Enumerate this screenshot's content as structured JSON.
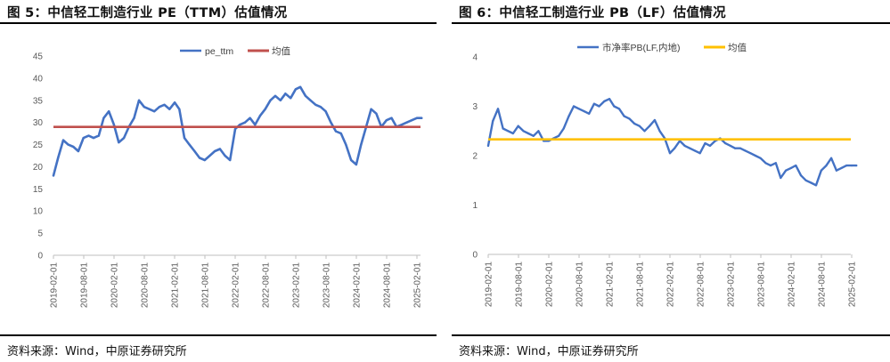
{
  "source_text": "资料来源：Wind，中原证券研究所",
  "chart_data": [
    {
      "type": "line",
      "title": "图 5：中信轻工制造行业 PE（TTM）估值情况",
      "ylim": [
        0,
        45
      ],
      "y_ticks": [
        "0",
        "5",
        "10",
        "15",
        "20",
        "25",
        "30",
        "35",
        "40",
        "45"
      ],
      "x_ticks": [
        "2019-02-01",
        "2019-08-01",
        "2020-02-01",
        "2020-08-01",
        "2021-02-01",
        "2021-08-01",
        "2022-02-01",
        "2022-08-01",
        "2023-02-01",
        "2023-08-01",
        "2024-02-01",
        "2024-08-01",
        "2025-02-01"
      ],
      "legend_placement": "top-center",
      "grid": false,
      "series": [
        {
          "name": "pe_ttm",
          "color": "#4472C4",
          "style": "line",
          "x": [
            "2019-02-01",
            "2019-03-01",
            "2019-04-01",
            "2019-05-01",
            "2019-06-01",
            "2019-07-01",
            "2019-08-01",
            "2019-09-01",
            "2019-10-01",
            "2019-11-01",
            "2019-12-01",
            "2020-01-01",
            "2020-02-01",
            "2020-03-01",
            "2020-04-01",
            "2020-05-01",
            "2020-06-01",
            "2020-07-01",
            "2020-08-01",
            "2020-09-01",
            "2020-10-01",
            "2020-11-01",
            "2020-12-01",
            "2021-01-01",
            "2021-02-01",
            "2021-03-01",
            "2021-04-01",
            "2021-05-01",
            "2021-06-01",
            "2021-07-01",
            "2021-08-01",
            "2021-09-01",
            "2021-10-01",
            "2021-11-01",
            "2021-12-01",
            "2022-01-01",
            "2022-02-01",
            "2022-03-01",
            "2022-04-01",
            "2022-05-01",
            "2022-06-01",
            "2022-07-01",
            "2022-08-01",
            "2022-09-01",
            "2022-10-01",
            "2022-11-01",
            "2022-12-01",
            "2023-01-01",
            "2023-02-01",
            "2023-03-01",
            "2023-04-01",
            "2023-05-01",
            "2023-06-01",
            "2023-07-01",
            "2023-08-01",
            "2023-09-01",
            "2023-10-01",
            "2023-11-01",
            "2023-12-01",
            "2024-01-01",
            "2024-02-01",
            "2024-03-01",
            "2024-04-01",
            "2024-05-01",
            "2024-06-01",
            "2024-07-01",
            "2024-08-01",
            "2024-09-01",
            "2024-10-01",
            "2024-11-01",
            "2024-12-01",
            "2025-01-01",
            "2025-02-01",
            "2025-03-01"
          ],
          "values": [
            18,
            22,
            26,
            25,
            24.5,
            23.5,
            26.5,
            27,
            26.5,
            27,
            31,
            32.5,
            29.5,
            25.5,
            26.5,
            29,
            31,
            35,
            33.5,
            33,
            32.5,
            33.5,
            34,
            33,
            34.5,
            33,
            26.5,
            25,
            23.5,
            22,
            21.5,
            22.5,
            23.5,
            24,
            22.5,
            21.5,
            28.5,
            29.5,
            30,
            31,
            29.5,
            31.5,
            33,
            35,
            36,
            35,
            36.5,
            35.5,
            37.5,
            38,
            36,
            35,
            34,
            33.5,
            32.5,
            30,
            28,
            27.5,
            25,
            21.5,
            20.5,
            25,
            29,
            33,
            32,
            29,
            30.5,
            31,
            29,
            29.5,
            30,
            30.5,
            31,
            31
          ]
        },
        {
          "name": "均值",
          "color": "#C0504D",
          "style": "flat",
          "values": [
            29
          ]
        }
      ]
    },
    {
      "type": "line",
      "title": "图 6：中信轻工制造行业 PB（LF）估值情况",
      "ylim": [
        0,
        4
      ],
      "y_ticks": [
        "0",
        "1",
        "2",
        "3",
        "4"
      ],
      "x_ticks": [
        "2019-02-01",
        "2019-08-01",
        "2020-02-01",
        "2020-08-01",
        "2021-02-01",
        "2021-08-01",
        "2022-02-01",
        "2022-08-01",
        "2023-02-01",
        "2023-08-01",
        "2024-02-01",
        "2024-08-01",
        "2025-02-01"
      ],
      "legend_placement": "top-center",
      "grid": false,
      "series": [
        {
          "name": "市净率PB(LF,内地)",
          "color": "#4472C4",
          "style": "line",
          "x": [
            "2019-02-01",
            "2019-03-01",
            "2019-04-01",
            "2019-05-01",
            "2019-06-01",
            "2019-07-01",
            "2019-08-01",
            "2019-09-01",
            "2019-10-01",
            "2019-11-01",
            "2019-12-01",
            "2020-01-01",
            "2020-02-01",
            "2020-03-01",
            "2020-04-01",
            "2020-05-01",
            "2020-06-01",
            "2020-07-01",
            "2020-08-01",
            "2020-09-01",
            "2020-10-01",
            "2020-11-01",
            "2020-12-01",
            "2021-01-01",
            "2021-02-01",
            "2021-03-01",
            "2021-04-01",
            "2021-05-01",
            "2021-06-01",
            "2021-07-01",
            "2021-08-01",
            "2021-09-01",
            "2021-10-01",
            "2021-11-01",
            "2021-12-01",
            "2022-01-01",
            "2022-02-01",
            "2022-03-01",
            "2022-04-01",
            "2022-05-01",
            "2022-06-01",
            "2022-07-01",
            "2022-08-01",
            "2022-09-01",
            "2022-10-01",
            "2022-11-01",
            "2022-12-01",
            "2023-01-01",
            "2023-02-01",
            "2023-03-01",
            "2023-04-01",
            "2023-05-01",
            "2023-06-01",
            "2023-07-01",
            "2023-08-01",
            "2023-09-01",
            "2023-10-01",
            "2023-11-01",
            "2023-12-01",
            "2024-01-01",
            "2024-02-01",
            "2024-03-01",
            "2024-04-01",
            "2024-05-01",
            "2024-06-01",
            "2024-07-01",
            "2024-08-01",
            "2024-09-01",
            "2024-10-01",
            "2024-11-01",
            "2024-12-01",
            "2025-01-01",
            "2025-02-01",
            "2025-03-01"
          ],
          "values": [
            2.2,
            2.7,
            2.95,
            2.55,
            2.5,
            2.45,
            2.6,
            2.5,
            2.45,
            2.4,
            2.5,
            2.3,
            2.3,
            2.35,
            2.4,
            2.55,
            2.8,
            3.0,
            2.95,
            2.9,
            2.85,
            3.05,
            3.0,
            3.1,
            3.15,
            3.0,
            2.95,
            2.8,
            2.75,
            2.65,
            2.6,
            2.5,
            2.6,
            2.72,
            2.5,
            2.35,
            2.05,
            2.15,
            2.3,
            2.2,
            2.15,
            2.1,
            2.05,
            2.25,
            2.2,
            2.3,
            2.35,
            2.25,
            2.2,
            2.15,
            2.15,
            2.1,
            2.05,
            2.0,
            1.95,
            1.85,
            1.8,
            1.85,
            1.55,
            1.7,
            1.75,
            1.8,
            1.6,
            1.5,
            1.45,
            1.4,
            1.7,
            1.8,
            1.95,
            1.7,
            1.75,
            1.8,
            1.8,
            1.8
          ]
        },
        {
          "name": "均值",
          "color": "#FFC000",
          "style": "flat",
          "values": [
            2.33
          ]
        }
      ]
    }
  ]
}
